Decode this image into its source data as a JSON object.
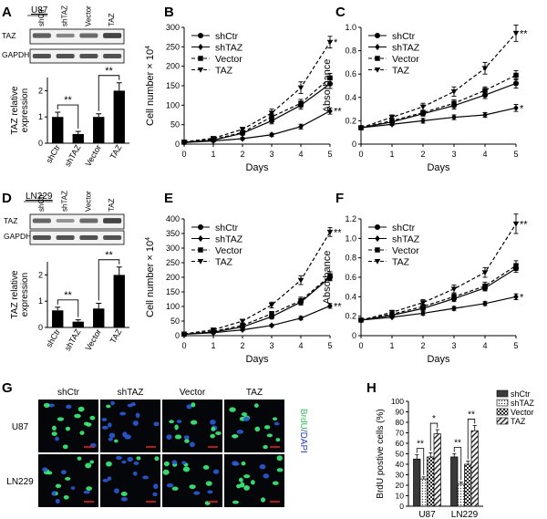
{
  "colors": {
    "ink": "#000000",
    "blot_bg": "#f2f2f2",
    "band": "#3a3a3a",
    "micro_bg": "#05060a",
    "nuclei_blue": "#2a5bd6",
    "nuclei_green": "#3df07a",
    "scale_bar": "#e0201c",
    "brdu_label": "#37c55a",
    "dapi_label": "#2a3cc8"
  },
  "panels": {
    "A": {
      "letter": "A",
      "cell_line": "U87",
      "blot_lanes": [
        "shCtr",
        "shTAZ",
        "Vector",
        "TAZ"
      ],
      "blot_rows": [
        "TAZ",
        "GAPDH"
      ],
      "taz_band_intensity": [
        0.75,
        0.45,
        0.65,
        0.95
      ],
      "gapdh_band_intensity": [
        0.85,
        0.85,
        0.85,
        0.85
      ],
      "ylabel": [
        "TAZ relative",
        "expression"
      ],
      "sig": [
        "**",
        "**"
      ]
    },
    "D": {
      "letter": "D",
      "cell_line": "LN229",
      "blot_lanes": [
        "shCtr",
        "shTAZ",
        "Vector",
        "TAZ"
      ],
      "blot_rows": [
        "TAZ",
        "GAPDH"
      ],
      "taz_band_intensity": [
        0.7,
        0.35,
        0.65,
        0.95
      ],
      "gapdh_band_intensity": [
        0.85,
        0.85,
        0.85,
        0.85
      ],
      "ylabel": [
        "TAZ relative",
        "expression"
      ],
      "sig": [
        "**",
        "**"
      ]
    },
    "B": {
      "letter": "B"
    },
    "C": {
      "letter": "C"
    },
    "E": {
      "letter": "E"
    },
    "F": {
      "letter": "F"
    },
    "G": {
      "letter": "G",
      "columns": [
        "shCtr",
        "shTAZ",
        "Vector",
        "TAZ"
      ],
      "rows": [
        "U87",
        "LN229"
      ],
      "side_label_brdu": "BrdU",
      "side_label_dapi": "/DAPI",
      "green_fraction": [
        [
          0.45,
          0.2,
          0.45,
          0.7
        ],
        [
          0.45,
          0.2,
          0.4,
          0.7
        ]
      ]
    },
    "H": {
      "letter": "H"
    }
  },
  "chart_data": [
    {
      "id": "A-bar",
      "type": "bar",
      "title": "",
      "categories": [
        "shCtr",
        "shTAZ",
        "Vector",
        "TAZ"
      ],
      "values": [
        1.0,
        0.35,
        1.0,
        2.0
      ],
      "errors": [
        0.18,
        0.1,
        0.12,
        0.3
      ],
      "ylim": [
        0,
        2.5
      ],
      "yticks": [
        0,
        1,
        2
      ],
      "xlabel": "",
      "ylabel": "TAZ relative expression",
      "annotations": [
        {
          "text": "**",
          "from": "shCtr",
          "to": "shTAZ"
        },
        {
          "text": "**",
          "from": "Vector",
          "to": "TAZ"
        }
      ]
    },
    {
      "id": "D-bar",
      "type": "bar",
      "title": "",
      "categories": [
        "shCtr",
        "shTAZ",
        "Vector",
        "TAZ"
      ],
      "values": [
        0.65,
        0.22,
        0.72,
        2.0
      ],
      "errors": [
        0.12,
        0.07,
        0.2,
        0.3
      ],
      "ylim": [
        0,
        2.5
      ],
      "yticks": [
        0,
        1,
        2
      ],
      "xlabel": "",
      "ylabel": "TAZ relative expression",
      "annotations": [
        {
          "text": "**",
          "from": "shCtr",
          "to": "shTAZ"
        },
        {
          "text": "**",
          "from": "Vector",
          "to": "TAZ"
        }
      ]
    },
    {
      "id": "B-line",
      "type": "line",
      "title": "",
      "xlabel": "Days",
      "ylabel": "Cell number × 10",
      "ylabel_sup": "4",
      "x": [
        0,
        1,
        2,
        3,
        4,
        5
      ],
      "xlim": [
        0,
        5
      ],
      "ylim": [
        0,
        300
      ],
      "yticks": [
        0,
        50,
        100,
        150,
        200,
        250,
        300
      ],
      "series": [
        {
          "name": "shCtr",
          "marker": "circle",
          "dash": "solid",
          "values": [
            5,
            10,
            28,
            60,
            100,
            155
          ],
          "errors": [
            2,
            3,
            5,
            8,
            10,
            12
          ]
        },
        {
          "name": "shTAZ",
          "marker": "diamond",
          "dash": "solid",
          "values": [
            4,
            8,
            14,
            24,
            45,
            85
          ],
          "errors": [
            2,
            2,
            3,
            4,
            6,
            8
          ]
        },
        {
          "name": "Vector",
          "marker": "square",
          "dash": "dashed",
          "values": [
            5,
            12,
            30,
            70,
            105,
            170
          ],
          "errors": [
            2,
            3,
            5,
            8,
            10,
            12
          ]
        },
        {
          "name": "TAZ",
          "marker": "triangle-down",
          "dash": "dashed",
          "values": [
            6,
            15,
            38,
            80,
            145,
            262
          ],
          "errors": [
            2,
            3,
            5,
            10,
            15,
            15
          ]
        }
      ],
      "annotations": [
        {
          "text": "*",
          "series": "TAZ"
        },
        {
          "text": "**",
          "series": "shTAZ"
        }
      ]
    },
    {
      "id": "C-line",
      "type": "line",
      "title": "",
      "xlabel": "Days",
      "ylabel": "Absorbance",
      "x": [
        0,
        1,
        2,
        3,
        4,
        5
      ],
      "xlim": [
        0,
        5
      ],
      "ylim": [
        0,
        1.0
      ],
      "yticks": [
        0,
        0.2,
        0.4,
        0.6,
        0.8,
        1.0
      ],
      "ytick_labels": [
        "0",
        "0.2",
        "0.4",
        "0.6",
        "0.8",
        "1.0"
      ],
      "series": [
        {
          "name": "shCtr",
          "marker": "circle",
          "dash": "solid",
          "values": [
            0.14,
            0.19,
            0.26,
            0.33,
            0.42,
            0.52
          ],
          "errors": [
            0.01,
            0.02,
            0.02,
            0.03,
            0.03,
            0.04
          ]
        },
        {
          "name": "shTAZ",
          "marker": "diamond",
          "dash": "solid",
          "values": [
            0.14,
            0.17,
            0.2,
            0.23,
            0.25,
            0.31
          ],
          "errors": [
            0.01,
            0.01,
            0.02,
            0.02,
            0.02,
            0.03
          ]
        },
        {
          "name": "Vector",
          "marker": "square",
          "dash": "dashed",
          "values": [
            0.14,
            0.2,
            0.27,
            0.35,
            0.46,
            0.59
          ],
          "errors": [
            0.01,
            0.02,
            0.02,
            0.03,
            0.03,
            0.04
          ]
        },
        {
          "name": "TAZ",
          "marker": "triangle-down",
          "dash": "dashed",
          "values": [
            0.14,
            0.23,
            0.32,
            0.45,
            0.65,
            0.95
          ],
          "errors": [
            0.01,
            0.02,
            0.03,
            0.04,
            0.05,
            0.07
          ]
        }
      ],
      "annotations": [
        {
          "text": "**",
          "series": "TAZ"
        },
        {
          "text": "*",
          "series": "shTAZ"
        }
      ]
    },
    {
      "id": "E-line",
      "type": "line",
      "title": "",
      "xlabel": "Days",
      "ylabel": "Cell number × 10",
      "ylabel_sup": "4",
      "x": [
        0,
        1,
        2,
        3,
        4,
        5
      ],
      "xlim": [
        0,
        5
      ],
      "ylim": [
        0,
        400
      ],
      "yticks": [
        0,
        50,
        100,
        150,
        200,
        250,
        300,
        350,
        400
      ],
      "series": [
        {
          "name": "shCtr",
          "marker": "circle",
          "dash": "solid",
          "values": [
            5,
            12,
            30,
            65,
            115,
            200
          ],
          "errors": [
            2,
            3,
            5,
            8,
            10,
            12
          ]
        },
        {
          "name": "shTAZ",
          "marker": "diamond",
          "dash": "solid",
          "values": [
            5,
            10,
            20,
            35,
            60,
            102
          ],
          "errors": [
            2,
            2,
            3,
            4,
            6,
            8
          ]
        },
        {
          "name": "Vector",
          "marker": "square",
          "dash": "dashed",
          "values": [
            5,
            15,
            35,
            75,
            120,
            205
          ],
          "errors": [
            2,
            3,
            5,
            8,
            12,
            14
          ]
        },
        {
          "name": "TAZ",
          "marker": "triangle-down",
          "dash": "dashed",
          "values": [
            6,
            20,
            50,
            105,
            190,
            355
          ],
          "errors": [
            2,
            4,
            6,
            10,
            15,
            15
          ]
        }
      ],
      "annotations": [
        {
          "text": "**",
          "series": "TAZ"
        },
        {
          "text": "**",
          "series": "shTAZ"
        }
      ]
    },
    {
      "id": "F-line",
      "type": "line",
      "title": "",
      "xlabel": "Days",
      "ylabel": "Absorbance",
      "x": [
        0,
        1,
        2,
        3,
        4,
        5
      ],
      "xlim": [
        0,
        5
      ],
      "ylim": [
        0,
        1.2
      ],
      "yticks": [
        0,
        0.2,
        0.4,
        0.6,
        0.8,
        1.0,
        1.2
      ],
      "ytick_labels": [
        "0",
        "0.2",
        "0.4",
        "0.6",
        "0.8",
        "1.0",
        "1.2"
      ],
      "series": [
        {
          "name": "shCtr",
          "marker": "circle",
          "dash": "solid",
          "values": [
            0.16,
            0.21,
            0.28,
            0.38,
            0.49,
            0.69
          ],
          "errors": [
            0.01,
            0.02,
            0.02,
            0.03,
            0.03,
            0.04
          ]
        },
        {
          "name": "shTAZ",
          "marker": "diamond",
          "dash": "solid",
          "values": [
            0.16,
            0.19,
            0.23,
            0.28,
            0.33,
            0.4
          ],
          "errors": [
            0.01,
            0.01,
            0.02,
            0.02,
            0.02,
            0.03
          ]
        },
        {
          "name": "Vector",
          "marker": "square",
          "dash": "dashed",
          "values": [
            0.16,
            0.22,
            0.3,
            0.4,
            0.51,
            0.72
          ],
          "errors": [
            0.01,
            0.02,
            0.02,
            0.03,
            0.04,
            0.05
          ]
        },
        {
          "name": "TAZ",
          "marker": "triangle-down",
          "dash": "dashed",
          "values": [
            0.16,
            0.24,
            0.34,
            0.48,
            0.65,
            1.15
          ],
          "errors": [
            0.01,
            0.02,
            0.03,
            0.04,
            0.05,
            0.1
          ]
        }
      ],
      "annotations": [
        {
          "text": "**",
          "series": "TAZ"
        },
        {
          "text": "*",
          "series": "shTAZ"
        }
      ]
    },
    {
      "id": "H-bar",
      "type": "bar",
      "title": "",
      "categories": [
        "U87",
        "LN229"
      ],
      "xlabel": "",
      "ylabel": "BrdU postive cells (%)",
      "ylim": [
        0,
        100
      ],
      "yticks": [
        0,
        10,
        20,
        30,
        40,
        50,
        60,
        70,
        80,
        90,
        100
      ],
      "series": [
        {
          "name": "shCtr",
          "pattern": "solid-dark",
          "values": [
            45,
            47
          ],
          "errors": [
            4,
            3
          ]
        },
        {
          "name": "shTAZ",
          "pattern": "dots",
          "values": [
            26,
            21
          ],
          "errors": [
            2,
            2
          ]
        },
        {
          "name": "Vector",
          "pattern": "checker",
          "values": [
            47,
            40
          ],
          "errors": [
            4,
            3
          ]
        },
        {
          "name": "TAZ",
          "pattern": "hatch",
          "values": [
            69,
            72
          ],
          "errors": [
            4,
            5
          ]
        }
      ],
      "annotations": [
        {
          "text": "**",
          "group": "U87",
          "from": "shCtr",
          "to": "shTAZ"
        },
        {
          "text": "*",
          "group": "U87",
          "from": "Vector",
          "to": "TAZ"
        },
        {
          "text": "**",
          "group": "LN229",
          "from": "shCtr",
          "to": "shTAZ"
        },
        {
          "text": "**",
          "group": "LN229",
          "from": "Vector",
          "to": "TAZ"
        }
      ]
    }
  ]
}
